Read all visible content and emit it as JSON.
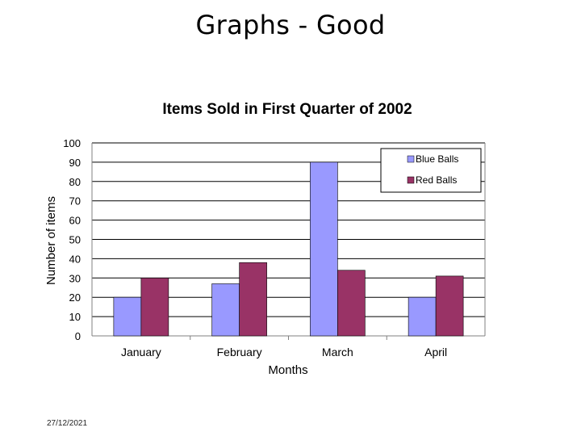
{
  "slide": {
    "title": "Graphs - Good",
    "date": "27/12/2021"
  },
  "chart_data": {
    "type": "bar",
    "title": "Items Sold in First Quarter of 2002",
    "xlabel": "Months",
    "ylabel": "Number of items",
    "categories": [
      "January",
      "February",
      "March",
      "April"
    ],
    "series": [
      {
        "name": "Blue Balls",
        "values": [
          20,
          27,
          90,
          20
        ]
      },
      {
        "name": "Red Balls",
        "values": [
          30,
          38,
          34,
          31
        ]
      }
    ],
    "ylim": [
      0,
      100
    ],
    "yticks": [
      0,
      10,
      20,
      30,
      40,
      50,
      60,
      70,
      80,
      90,
      100
    ],
    "grid": true,
    "legend_position": "top-right",
    "colors": {
      "Blue Balls": "#9999ff",
      "Red Balls": "#993366",
      "gridline": "#000000",
      "axis": "#808080"
    }
  }
}
